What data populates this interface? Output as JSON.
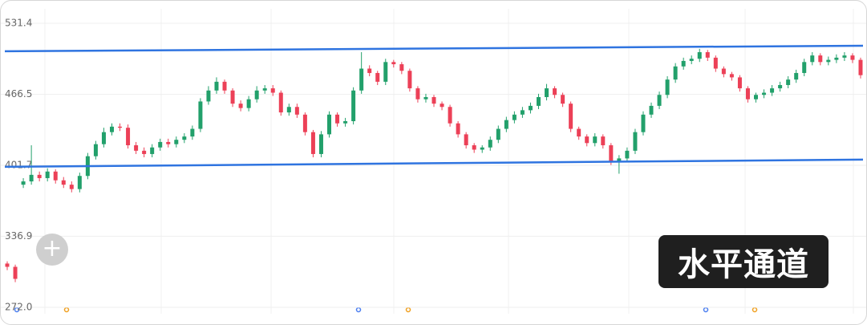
{
  "chart_data": {
    "type": "candlestick",
    "annotation": "水平通道",
    "ylim": [
      272.0,
      531.4
    ],
    "yticks": [
      {
        "value": 272.0,
        "label": "272.0"
      },
      336.9,
      401.7,
      466.5,
      531.4
    ],
    "grid": true,
    "up_color": "#22a06b",
    "down_color": "#ec4057",
    "candles": {
      "open": [
        312,
        309,
        384,
        387,
        393,
        390,
        396,
        388,
        384,
        380,
        392,
        410,
        421,
        432,
        437,
        436,
        420,
        415,
        412,
        418,
        423,
        421,
        425,
        428,
        435,
        460,
        470,
        478,
        470,
        458,
        454,
        462,
        470,
        472,
        468,
        450,
        455,
        448,
        432,
        412,
        430,
        448,
        440,
        442,
        470,
        490,
        486,
        478,
        496,
        494,
        488,
        472,
        462,
        464,
        458,
        455,
        440,
        430,
        420,
        416,
        418,
        425,
        435,
        443,
        448,
        452,
        456,
        464,
        472,
        466,
        458,
        435,
        428,
        422,
        428,
        420,
        405,
        408,
        415,
        432,
        448,
        456,
        466,
        480,
        492,
        497,
        499,
        505,
        500,
        490,
        485,
        482,
        472,
        462,
        466,
        468,
        472,
        475,
        480,
        486,
        496,
        502,
        496,
        498,
        500,
        502,
        498
      ],
      "high": [
        314,
        311,
        390,
        420,
        396,
        399,
        398,
        391,
        387,
        395,
        413,
        424,
        436,
        440,
        440,
        439,
        423,
        418,
        421,
        426,
        426,
        428,
        431,
        438,
        463,
        474,
        482,
        480,
        472,
        461,
        465,
        474,
        475,
        475,
        470,
        458,
        458,
        450,
        434,
        433,
        451,
        450,
        445,
        473,
        505,
        493,
        488,
        499,
        498,
        496,
        490,
        474,
        467,
        466,
        460,
        457,
        442,
        432,
        422,
        420,
        428,
        438,
        446,
        451,
        455,
        459,
        467,
        476,
        474,
        468,
        460,
        437,
        430,
        431,
        430,
        422,
        411,
        418,
        435,
        451,
        459,
        469,
        483,
        495,
        500,
        502,
        508,
        507,
        502,
        492,
        487,
        484,
        474,
        468,
        471,
        475,
        478,
        483,
        489,
        499,
        505,
        504,
        501,
        503,
        505,
        504,
        500
      ],
      "low": [
        306,
        295,
        381,
        384,
        387,
        387,
        385,
        381,
        377,
        377,
        389,
        407,
        418,
        429,
        433,
        417,
        412,
        409,
        409,
        415,
        418,
        418,
        422,
        425,
        432,
        457,
        467,
        467,
        455,
        451,
        451,
        459,
        467,
        465,
        447,
        447,
        445,
        429,
        409,
        409,
        427,
        437,
        437,
        439,
        467,
        483,
        475,
        475,
        491,
        485,
        469,
        459,
        459,
        455,
        452,
        437,
        427,
        417,
        413,
        413,
        415,
        422,
        432,
        440,
        445,
        449,
        453,
        461,
        463,
        455,
        432,
        425,
        419,
        419,
        417,
        402,
        394,
        405,
        412,
        429,
        445,
        453,
        463,
        477,
        489,
        494,
        496,
        497,
        487,
        482,
        479,
        469,
        459,
        459,
        463,
        465,
        469,
        472,
        477,
        483,
        493,
        493,
        493,
        495,
        497,
        495,
        481
      ],
      "close": [
        309,
        298,
        387,
        393,
        390,
        396,
        388,
        384,
        380,
        392,
        410,
        421,
        432,
        437,
        436,
        420,
        415,
        412,
        418,
        423,
        421,
        425,
        428,
        435,
        460,
        470,
        478,
        470,
        458,
        454,
        462,
        470,
        472,
        468,
        450,
        455,
        448,
        432,
        412,
        430,
        448,
        440,
        442,
        470,
        490,
        486,
        478,
        496,
        494,
        488,
        472,
        462,
        464,
        458,
        455,
        440,
        430,
        420,
        416,
        418,
        425,
        435,
        443,
        448,
        452,
        456,
        464,
        472,
        466,
        458,
        435,
        428,
        422,
        428,
        420,
        405,
        408,
        415,
        432,
        448,
        456,
        466,
        480,
        492,
        497,
        499,
        505,
        500,
        490,
        485,
        482,
        472,
        462,
        466,
        468,
        472,
        475,
        480,
        486,
        496,
        502,
        496,
        498,
        500,
        502,
        498,
        484
      ]
    },
    "channels": [
      {
        "color": "#2f74e0",
        "values": [
          505.8,
          510.9
        ]
      },
      {
        "color": "#2f74e0",
        "values": [
          400.3,
          406.9
        ]
      }
    ]
  }
}
